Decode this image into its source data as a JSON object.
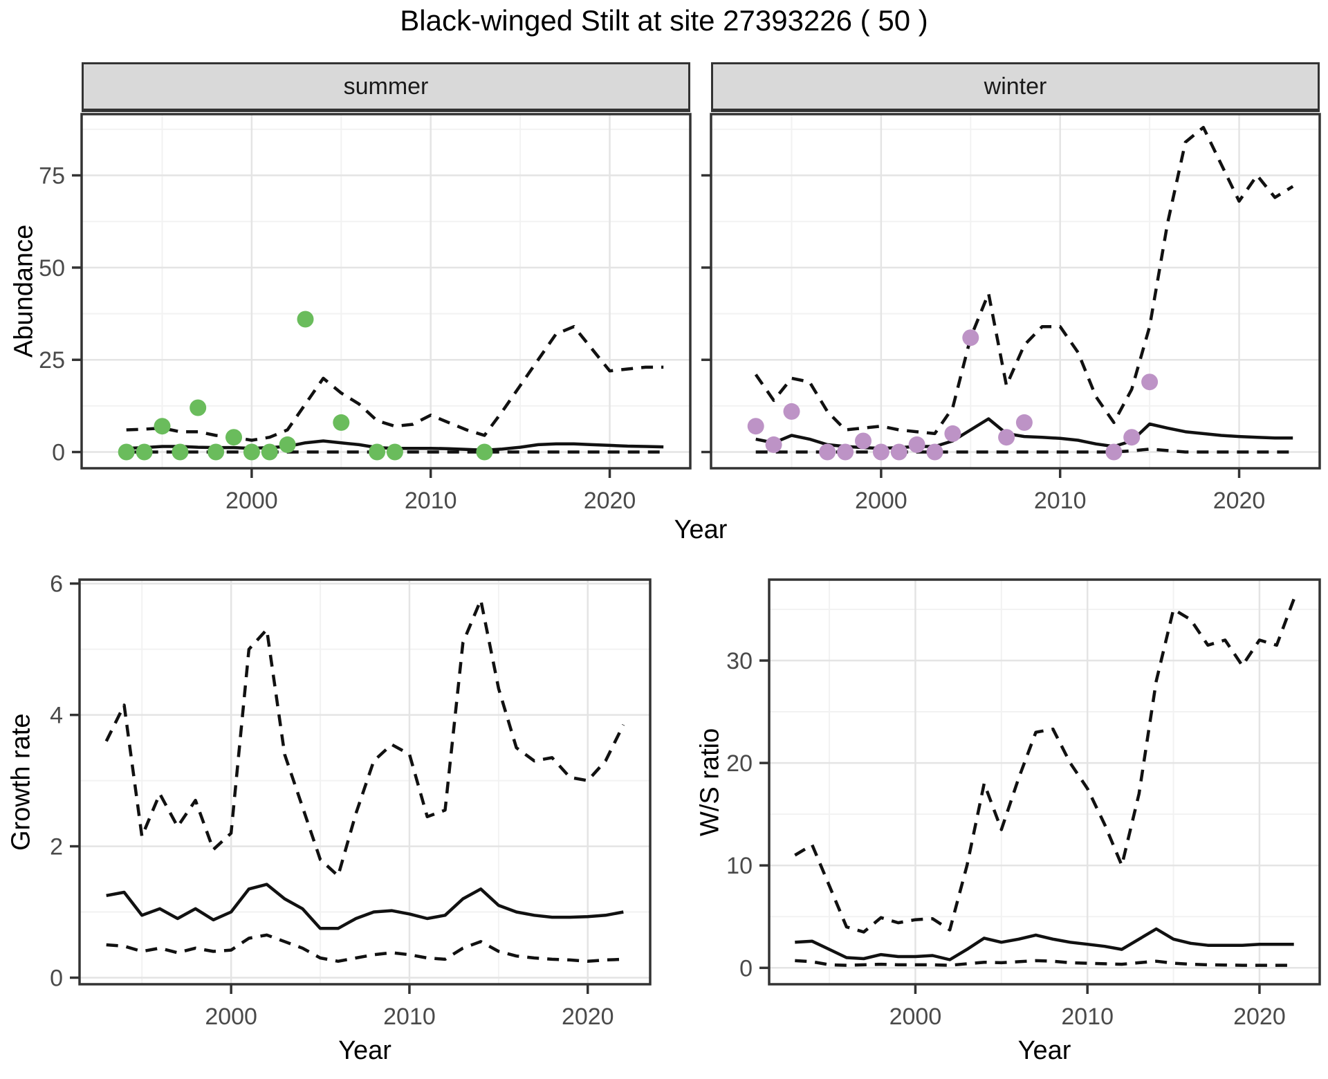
{
  "title": "Black-winged Stilt at site 27393226 ( 50 )",
  "facets": {
    "summer": "summer",
    "winter": "winter"
  },
  "axis_titles": {
    "abundance": "Abundance",
    "year": "Year",
    "growth": "Growth rate",
    "ws": "W/S ratio"
  },
  "colors": {
    "line": "#111111",
    "summer_point": "#6abc5c",
    "winter_point": "#bd93c6",
    "grid_major": "#e4e4e4",
    "grid_minor": "#f2f2f2",
    "panel_border": "#333333",
    "tick": "#333333",
    "axis_text": "#4a4a4a",
    "strip_bg": "#d9d9d9"
  },
  "chart_data": [
    {
      "id": "summer",
      "type": "line",
      "facet_label": "summer",
      "xlabel": "Year",
      "ylabel": "Abundance",
      "xlim": [
        1990.5,
        2024.5
      ],
      "ylim": [
        -4.4,
        91.6
      ],
      "x_ticks": [
        2000,
        2010,
        2020
      ],
      "x_minor": [
        1995,
        2005,
        2015
      ],
      "y_ticks": [
        0,
        25,
        50,
        75
      ],
      "y_minor": [
        12.5,
        37.5,
        62.5,
        87.5
      ],
      "show_y_tick_labels": true,
      "years": [
        1993,
        1994,
        1995,
        1996,
        1997,
        1998,
        1999,
        2000,
        2001,
        2002,
        2003,
        2004,
        2005,
        2006,
        2007,
        2008,
        2009,
        2010,
        2011,
        2012,
        2013,
        2014,
        2015,
        2016,
        2017,
        2018,
        2019,
        2020,
        2021,
        2022,
        2023
      ],
      "series": [
        {
          "name": "upper-credible-interval",
          "style": "dashed",
          "values": [
            6,
            6.2,
            6.5,
            5.5,
            5.5,
            4.5,
            4,
            3.2,
            4,
            6,
            13,
            20,
            16,
            13,
            8.5,
            7,
            7.5,
            10,
            8,
            6,
            4.5,
            11,
            18,
            25,
            32,
            34,
            28,
            22,
            22.5,
            23,
            23
          ]
        },
        {
          "name": "median-estimate",
          "style": "solid",
          "values": [
            1,
            1.2,
            1.5,
            1.5,
            1.3,
            1.2,
            1.2,
            1,
            1.2,
            1.5,
            2.5,
            3,
            2.5,
            2,
            1.2,
            1,
            1,
            1,
            0.9,
            0.7,
            0.5,
            0.8,
            1.3,
            2,
            2.2,
            2.2,
            2,
            1.8,
            1.6,
            1.5,
            1.4
          ]
        },
        {
          "name": "lower-credible-interval",
          "style": "dashed",
          "values": [
            0,
            0,
            0,
            0,
            0,
            0,
            0,
            0,
            0,
            0,
            0,
            0,
            0,
            0,
            0,
            0,
            0,
            0,
            0,
            0,
            0,
            0,
            0,
            0,
            0,
            0,
            0,
            0,
            0,
            0,
            0
          ]
        }
      ],
      "points": {
        "name": "observed-counts-summer",
        "color": "#6abc5c",
        "x": [
          1993,
          1994,
          1995,
          1996,
          1997,
          1998,
          1999,
          2000,
          2001,
          2002,
          2003,
          2005,
          2007,
          2008,
          2013
        ],
        "y": [
          0,
          0,
          7,
          0,
          12,
          0,
          4,
          0,
          0,
          2,
          36,
          8,
          0,
          0,
          0
        ]
      }
    },
    {
      "id": "winter",
      "type": "line",
      "facet_label": "winter",
      "xlabel": "Year",
      "ylabel": "Abundance",
      "xlim": [
        1990.5,
        2024.5
      ],
      "ylim": [
        -4.4,
        91.6
      ],
      "x_ticks": [
        2000,
        2010,
        2020
      ],
      "x_minor": [
        1995,
        2005,
        2015
      ],
      "y_ticks": [
        0,
        25,
        50,
        75
      ],
      "y_minor": [
        12.5,
        37.5,
        62.5,
        87.5
      ],
      "show_y_tick_labels": false,
      "years": [
        1993,
        1994,
        1995,
        1996,
        1997,
        1998,
        1999,
        2000,
        2001,
        2002,
        2003,
        2004,
        2005,
        2006,
        2007,
        2008,
        2009,
        2010,
        2011,
        2012,
        2013,
        2014,
        2015,
        2016,
        2017,
        2018,
        2019,
        2020,
        2021,
        2022,
        2023
      ],
      "series": [
        {
          "name": "upper-credible-interval",
          "style": "dashed",
          "values": [
            21,
            14,
            20,
            19,
            11,
            6,
            6.5,
            7,
            6,
            5.5,
            5,
            12,
            31,
            43,
            18,
            29,
            34,
            34,
            27,
            15,
            8,
            17,
            34,
            62,
            84,
            88,
            78,
            68,
            75,
            69,
            72
          ]
        },
        {
          "name": "median-estimate",
          "style": "solid",
          "values": [
            3.5,
            2.5,
            4.5,
            3.5,
            2,
            1.5,
            1.2,
            1,
            1.2,
            1.5,
            1.5,
            3,
            6,
            9,
            5,
            4.2,
            4,
            3.7,
            3.2,
            2.2,
            1.5,
            3,
            7.6,
            6.5,
            5.5,
            5,
            4.5,
            4.2,
            4,
            3.8,
            3.8
          ]
        },
        {
          "name": "lower-credible-interval",
          "style": "dashed",
          "values": [
            0,
            0,
            0,
            0,
            0,
            0,
            0,
            0,
            0,
            0,
            0,
            0,
            0,
            0,
            0,
            0,
            0,
            0,
            0,
            0,
            0,
            0.3,
            0.8,
            0.4,
            0,
            0,
            0,
            0,
            0,
            0,
            0
          ]
        }
      ],
      "points": {
        "name": "observed-counts-winter",
        "color": "#bd93c6",
        "x": [
          1993,
          1994,
          1995,
          1997,
          1998,
          1999,
          2000,
          2001,
          2002,
          2003,
          2004,
          2005,
          2007,
          2008,
          2013,
          2014,
          2015
        ],
        "y": [
          7,
          2,
          11,
          0,
          0,
          3,
          0,
          0,
          2,
          0,
          5,
          31,
          4,
          8,
          0,
          4,
          19
        ]
      }
    },
    {
      "id": "growth",
      "type": "line",
      "facet_label": "",
      "xlabel": "Year",
      "ylabel": "Growth rate",
      "xlim": [
        1991.5,
        2023.5
      ],
      "ylim": [
        -0.1,
        6.06
      ],
      "x_ticks": [
        2000,
        2010,
        2020
      ],
      "x_minor": [
        1995,
        2005,
        2015
      ],
      "y_ticks": [
        0,
        2,
        4,
        6
      ],
      "y_minor": [
        1,
        3,
        5
      ],
      "show_y_tick_labels": true,
      "years": [
        1993,
        1994,
        1995,
        1996,
        1997,
        1998,
        1999,
        2000,
        2001,
        2002,
        2003,
        2004,
        2005,
        2006,
        2007,
        2008,
        2009,
        2010,
        2011,
        2012,
        2013,
        2014,
        2015,
        2016,
        2017,
        2018,
        2019,
        2020,
        2021,
        2022
      ],
      "series": [
        {
          "name": "upper-credible-interval",
          "style": "dashed",
          "values": [
            3.6,
            4.15,
            2.15,
            2.8,
            2.3,
            2.7,
            1.95,
            2.2,
            5.0,
            5.3,
            3.4,
            2.6,
            1.8,
            1.55,
            2.5,
            3.3,
            3.55,
            3.4,
            2.45,
            2.55,
            5.1,
            5.75,
            4.4,
            3.5,
            3.3,
            3.35,
            3.05,
            3.0,
            3.3,
            3.85
          ]
        },
        {
          "name": "median-estimate",
          "style": "solid",
          "values": [
            1.25,
            1.3,
            0.95,
            1.05,
            0.9,
            1.05,
            0.88,
            1.0,
            1.35,
            1.42,
            1.2,
            1.05,
            0.75,
            0.75,
            0.9,
            1.0,
            1.02,
            0.97,
            0.9,
            0.95,
            1.2,
            1.35,
            1.1,
            1.0,
            0.95,
            0.92,
            0.92,
            0.93,
            0.95,
            1.0
          ]
        },
        {
          "name": "lower-credible-interval",
          "style": "dashed",
          "values": [
            0.5,
            0.48,
            0.4,
            0.45,
            0.38,
            0.45,
            0.4,
            0.42,
            0.6,
            0.65,
            0.55,
            0.45,
            0.3,
            0.25,
            0.3,
            0.35,
            0.38,
            0.35,
            0.3,
            0.28,
            0.45,
            0.55,
            0.4,
            0.33,
            0.3,
            0.28,
            0.27,
            0.25,
            0.27,
            0.28
          ]
        }
      ],
      "points": null
    },
    {
      "id": "ws",
      "type": "line",
      "facet_label": "",
      "xlabel": "Year",
      "ylabel": "W/S ratio",
      "xlim": [
        1991.5,
        2023.5
      ],
      "ylim": [
        -1.6,
        37.9
      ],
      "x_ticks": [
        2000,
        2010,
        2020
      ],
      "x_minor": [
        1995,
        2005,
        2015
      ],
      "y_ticks": [
        0,
        10,
        20,
        30
      ],
      "y_minor": [
        5,
        15,
        25,
        35
      ],
      "show_y_tick_labels": true,
      "years": [
        1993,
        1994,
        1995,
        1996,
        1997,
        1998,
        1999,
        2000,
        2001,
        2002,
        2003,
        2004,
        2005,
        2006,
        2007,
        2008,
        2009,
        2010,
        2011,
        2012,
        2013,
        2014,
        2015,
        2016,
        2017,
        2018,
        2019,
        2020,
        2021,
        2022
      ],
      "series": [
        {
          "name": "upper-credible-interval",
          "style": "dashed",
          "values": [
            11,
            12,
            8,
            4,
            3.5,
            4.9,
            4.4,
            4.7,
            4.8,
            3.7,
            10,
            18,
            13.5,
            18.5,
            23,
            23.3,
            20,
            17.5,
            14,
            10,
            17,
            28,
            35,
            34,
            31.5,
            32,
            29.5,
            32,
            31.5,
            36
          ]
        },
        {
          "name": "median-estimate",
          "style": "solid",
          "values": [
            2.5,
            2.6,
            1.8,
            1.0,
            0.9,
            1.3,
            1.1,
            1.1,
            1.2,
            0.8,
            1.8,
            2.9,
            2.5,
            2.8,
            3.2,
            2.8,
            2.5,
            2.3,
            2.1,
            1.8,
            2.8,
            3.8,
            2.8,
            2.4,
            2.2,
            2.2,
            2.2,
            2.3,
            2.3,
            2.3
          ]
        },
        {
          "name": "lower-credible-interval",
          "style": "dashed",
          "values": [
            0.7,
            0.6,
            0.3,
            0.25,
            0.3,
            0.35,
            0.3,
            0.3,
            0.3,
            0.25,
            0.4,
            0.55,
            0.5,
            0.6,
            0.7,
            0.65,
            0.5,
            0.45,
            0.4,
            0.35,
            0.5,
            0.65,
            0.45,
            0.35,
            0.3,
            0.28,
            0.25,
            0.25,
            0.25,
            0.25
          ]
        }
      ],
      "points": null
    }
  ]
}
